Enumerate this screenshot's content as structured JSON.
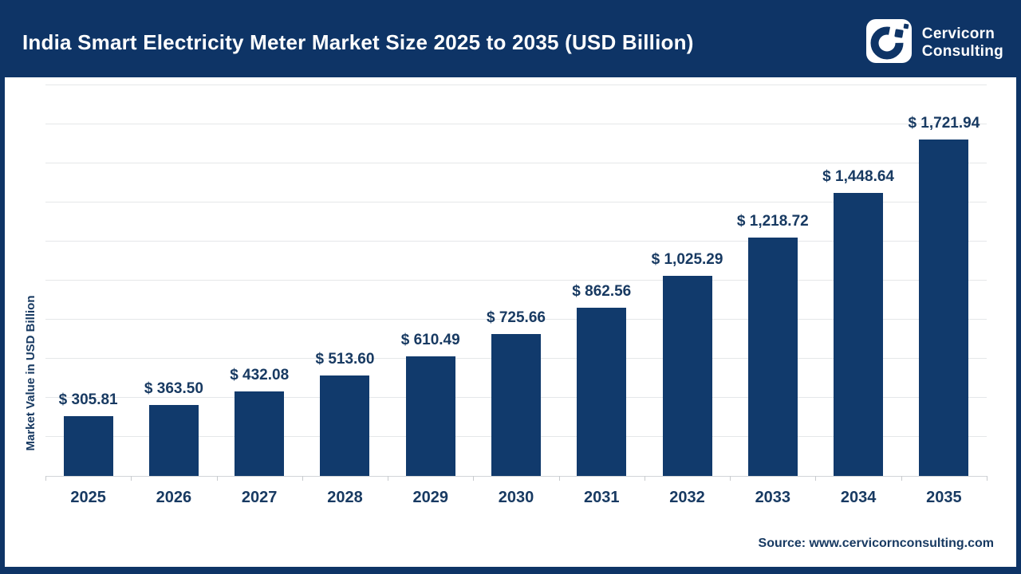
{
  "header": {
    "title": "India Smart Electricity Meter Market Size 2025 to 2035 (USD Billion)",
    "brand": {
      "line1": "Cervicorn",
      "line2": "Consulting"
    }
  },
  "chart_data": {
    "type": "bar",
    "title": "India Smart Electricity Meter Market Size 2025 to 2035 (USD Billion)",
    "xlabel": "",
    "ylabel": "Market Value in USD Billion",
    "categories": [
      "2025",
      "2026",
      "2027",
      "2028",
      "2029",
      "2030",
      "2031",
      "2032",
      "2033",
      "2034",
      "2035"
    ],
    "values": [
      305.81,
      363.5,
      432.08,
      513.6,
      610.49,
      725.66,
      862.56,
      1025.29,
      1218.72,
      1448.64,
      1721.94
    ],
    "value_labels": [
      "$ 305.81",
      "$ 363.50",
      "$ 432.08",
      "$ 513.60",
      "$ 610.49",
      "$ 725.66",
      "$ 862.56",
      "$ 1,025.29",
      "$ 1,218.72",
      "$ 1,448.64",
      "$ 1,721.94"
    ],
    "ylim": [
      0,
      2000
    ],
    "ytick_step": 200,
    "grid": "horizontal",
    "legend": "none",
    "bar_color": "#113A6C",
    "label_color": "#183A62"
  },
  "footer": {
    "source": "Source: www.cervicornconsulting.com"
  },
  "colors": {
    "navy": "#0E3466",
    "gridline": "#E5E7E9",
    "white": "#FFFFFF"
  }
}
